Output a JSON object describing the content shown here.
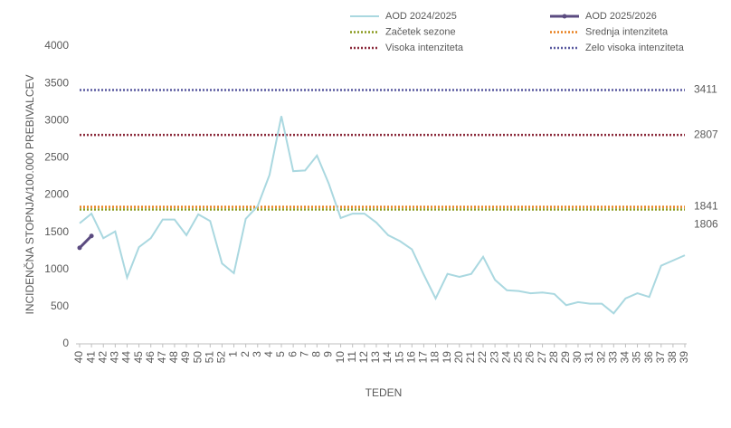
{
  "chart_data": {
    "type": "line",
    "y_label": "INCIDENČNA  STOPNJA/100.000  PREBIVALCEV",
    "x_label": "TEDEN",
    "categories": [
      "40",
      "41",
      "42",
      "43",
      "44",
      "45",
      "46",
      "47",
      "48",
      "49",
      "50",
      "51",
      "52",
      "1",
      "2",
      "3",
      "4",
      "5",
      "6",
      "7",
      "8",
      "9",
      "10",
      "11",
      "12",
      "13",
      "14",
      "15",
      "16",
      "17",
      "18",
      "19",
      "20",
      "21",
      "22",
      "23",
      "24",
      "25",
      "26",
      "27",
      "28",
      "29",
      "30",
      "31",
      "32",
      "33",
      "34",
      "35",
      "36",
      "37",
      "38",
      "39"
    ],
    "series": [
      {
        "name": "AOD 2024/2025",
        "color": "#aad8e0",
        "markers": false,
        "values": [
          1620,
          1750,
          1420,
          1510,
          890,
          1300,
          1420,
          1670,
          1670,
          1460,
          1740,
          1650,
          1080,
          950,
          1680,
          1850,
          2270,
          3060,
          2320,
          2330,
          2530,
          2150,
          1690,
          1750,
          1750,
          1630,
          1460,
          1380,
          1270,
          930,
          610,
          940,
          900,
          940,
          1170,
          860,
          720,
          710,
          680,
          690,
          670,
          520,
          560,
          540,
          540,
          410,
          610,
          680,
          630,
          1050,
          1120,
          1190
        ]
      },
      {
        "name": "AOD 2025/2026",
        "color": "#5b4b80",
        "markers": true,
        "values": [
          1290,
          1450,
          null,
          null,
          null,
          null,
          null,
          null,
          null,
          null,
          null,
          null,
          null,
          null,
          null,
          null,
          null,
          null,
          null,
          null,
          null,
          null,
          null,
          null,
          null,
          null,
          null,
          null,
          null,
          null,
          null,
          null,
          null,
          null,
          null,
          null,
          null,
          null,
          null,
          null,
          null,
          null,
          null,
          null,
          null,
          null,
          null,
          null,
          null,
          null,
          null,
          null
        ]
      }
    ],
    "thresholds": [
      {
        "name": "Začetek sezone",
        "value": 1806,
        "color": "#8a9a1e",
        "label_color": "#8a9a1e"
      },
      {
        "name": "Srednja intenziteta",
        "value": 1841,
        "color": "#e8801e",
        "label_color": "#e08020"
      },
      {
        "name": "Visoka intenziteta",
        "value": 2807,
        "color": "#8b2a3b",
        "label_color": "#7a2a4a"
      },
      {
        "name": "Zelo visoka intenziteta",
        "value": 3411,
        "color": "#5a5aa0",
        "label_color": "#5b4b8a"
      }
    ],
    "ylim": [
      0,
      4000
    ],
    "yticks": [
      0,
      500,
      1000,
      1500,
      2000,
      2500,
      3000,
      3500,
      4000
    ],
    "grid": false
  }
}
